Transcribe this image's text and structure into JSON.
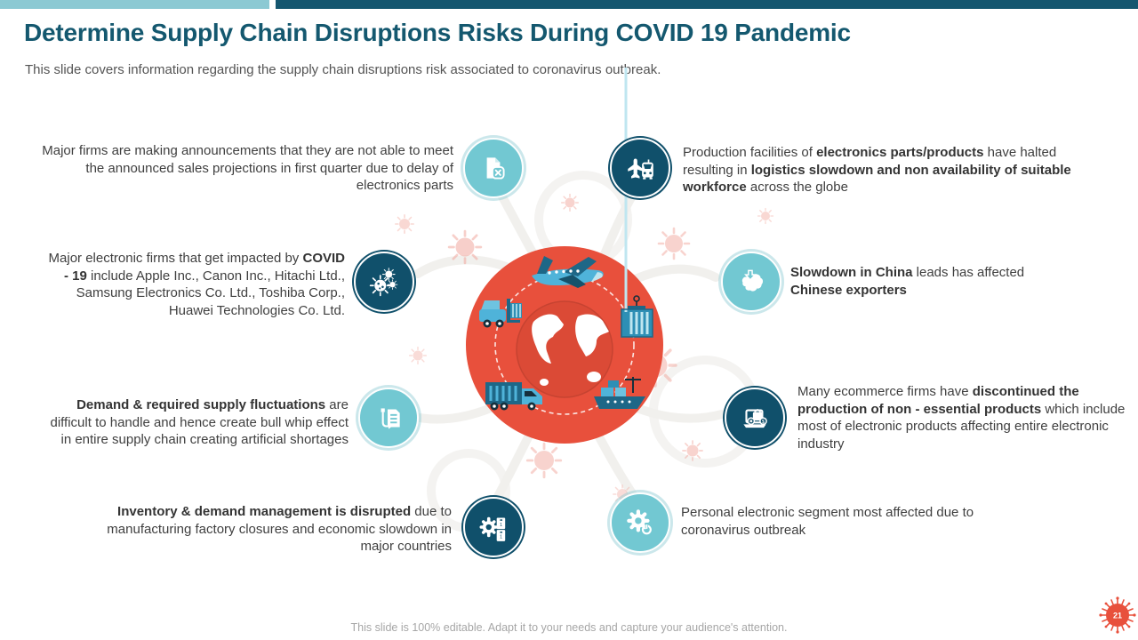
{
  "slide": {
    "title": "Determine Supply Chain Disruptions Risks During COVID 19 Pandemic",
    "subtitle": "This slide covers information regarding the supply chain disruptions risk associated to coronavirus outbreak.",
    "footer_note": "This slide is 100% editable. Adapt it to your needs and capture your audience's attention.",
    "slide_number": "21"
  },
  "colors": {
    "accent_light_teal": "#72C8D2",
    "accent_dark_teal": "#10506B",
    "title_teal": "#14586F",
    "center_red": "#E8503C",
    "virus_pink": "#F2A99F",
    "body_text": "#3F3F3F",
    "footer_text": "#A6A6A6"
  },
  "center": {
    "illustration": "globe with logistics transport icons (airplane, forklift, shipping container, truck, cargo ship) inside red circle surrounded by coronavirus particles"
  },
  "items": {
    "left": [
      {
        "icon": "document-cancel-icon",
        "tone": "light",
        "runs": [
          {
            "text": "Major firms are making announcements that they are not able to meet the announced sales projections in first quarter due to delay of electronics parts",
            "bold": false
          }
        ]
      },
      {
        "icon": "virus-icon",
        "tone": "dark",
        "runs": [
          {
            "text": "Major electronic firms that get impacted by ",
            "bold": false
          },
          {
            "text": "COVID - 19",
            "bold": true
          },
          {
            "text": " include Apple Inc., Canon Inc., Hitachi Ltd., Samsung Electronics Co. Ltd., Toshiba Corp., Huawei Technologies Co. Ltd.",
            "bold": false
          }
        ]
      },
      {
        "icon": "workflow-document-icon",
        "tone": "light",
        "runs": [
          {
            "text": "Demand & required supply fluctuations",
            "bold": true
          },
          {
            "text": " are difficult to handle and hence create bull whip effect in entire supply chain creating artificial shortages",
            "bold": false
          }
        ]
      },
      {
        "icon": "gear-inventory-icon",
        "tone": "dark",
        "runs": [
          {
            "text": "Inventory & demand management is disrupted",
            "bold": true
          },
          {
            "text": " due to manufacturing factory closures and economic slowdown in major countries",
            "bold": false
          }
        ]
      }
    ],
    "right": [
      {
        "icon": "plane-truck-icon",
        "tone": "dark",
        "runs": [
          {
            "text": "Production facilities of ",
            "bold": false
          },
          {
            "text": "electronics parts/products",
            "bold": true
          },
          {
            "text": " have halted resulting in ",
            "bold": false
          },
          {
            "text": "logistics slowdown and non availability of suitable workforce",
            "bold": true
          },
          {
            "text": " across the globe",
            "bold": false
          }
        ]
      },
      {
        "icon": "china-map-icon",
        "tone": "light",
        "runs": [
          {
            "text": "Slowdown in China",
            "bold": true
          },
          {
            "text": " leads has affected ",
            "bold": false
          },
          {
            "text": "Chinese exporters",
            "bold": true
          }
        ]
      },
      {
        "icon": "laptop-shopping-icon",
        "tone": "dark",
        "runs": [
          {
            "text": "Many ecommerce firms have ",
            "bold": false
          },
          {
            "text": "discontinued the production of non - essential products",
            "bold": true
          },
          {
            "text": " which include most of electronic products affecting entire electronic industry",
            "bold": false
          }
        ]
      },
      {
        "icon": "gear-power-icon",
        "tone": "light",
        "runs": [
          {
            "text": "Personal electronic segment most affected due to coronavirus outbreak",
            "bold": false
          }
        ]
      }
    ]
  }
}
